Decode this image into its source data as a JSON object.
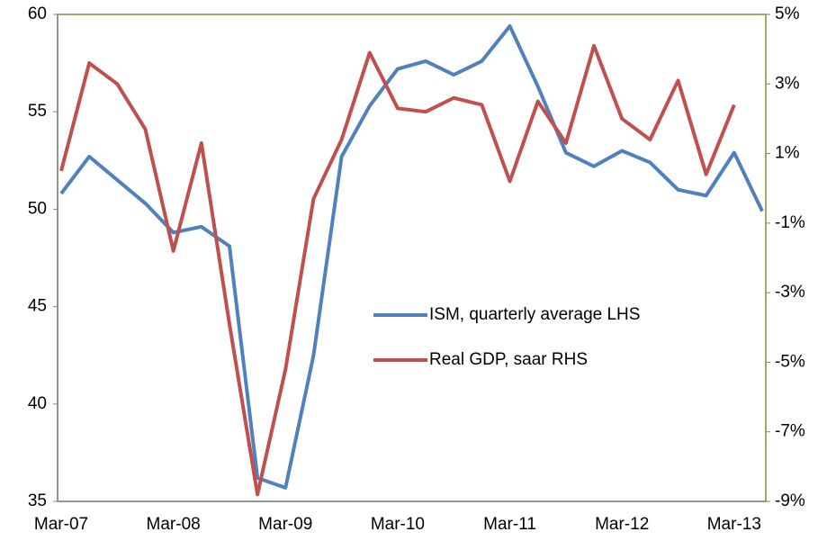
{
  "chart_data": {
    "type": "line",
    "categories": [
      "Mar-07",
      null,
      null,
      null,
      "Mar-08",
      null,
      null,
      null,
      "Mar-09",
      null,
      null,
      null,
      "Mar-10",
      null,
      null,
      null,
      "Mar-11",
      null,
      null,
      null,
      "Mar-12",
      null,
      null,
      null,
      "Mar-13",
      null
    ],
    "series": [
      {
        "name": "ISM, quarterly average LHS",
        "color": "#4f81bd",
        "axis": "y",
        "values": [
          50.8,
          52.7,
          51.5,
          50.3,
          48.8,
          49.1,
          48.1,
          36.2,
          35.7,
          42.5,
          52.7,
          55.3,
          57.2,
          57.6,
          56.9,
          57.6,
          59.4,
          56.3,
          52.9,
          52.2,
          53.0,
          52.4,
          51.0,
          50.7,
          52.9,
          49.9
        ]
      },
      {
        "name": "Real GDP, saar RHS",
        "color": "#c0504d",
        "axis": "y2",
        "values": [
          0.5,
          3.6,
          3.0,
          1.7,
          -1.8,
          1.3,
          -3.9,
          -8.8,
          -5.2,
          -0.3,
          1.4,
          3.9,
          2.3,
          2.2,
          2.6,
          2.4,
          0.2,
          2.5,
          1.3,
          4.1,
          2.0,
          1.4,
          3.1,
          0.4,
          2.4,
          null
        ]
      }
    ],
    "ylim": [
      35,
      60
    ],
    "yticks": [
      35,
      40,
      45,
      50,
      55,
      60
    ],
    "y2lim": [
      -9,
      5
    ],
    "y2ticks": [
      {
        "value": -9,
        "label": "-9%"
      },
      {
        "value": -7,
        "label": "-7%"
      },
      {
        "value": -5,
        "label": "-5%"
      },
      {
        "value": -3,
        "label": "-3%"
      },
      {
        "value": -1,
        "label": "-1%"
      },
      {
        "value": 1,
        "label": "1%"
      },
      {
        "value": 3,
        "label": "3%"
      },
      {
        "value": 5,
        "label": "5%"
      }
    ],
    "grid": false,
    "legend": "center-right"
  }
}
